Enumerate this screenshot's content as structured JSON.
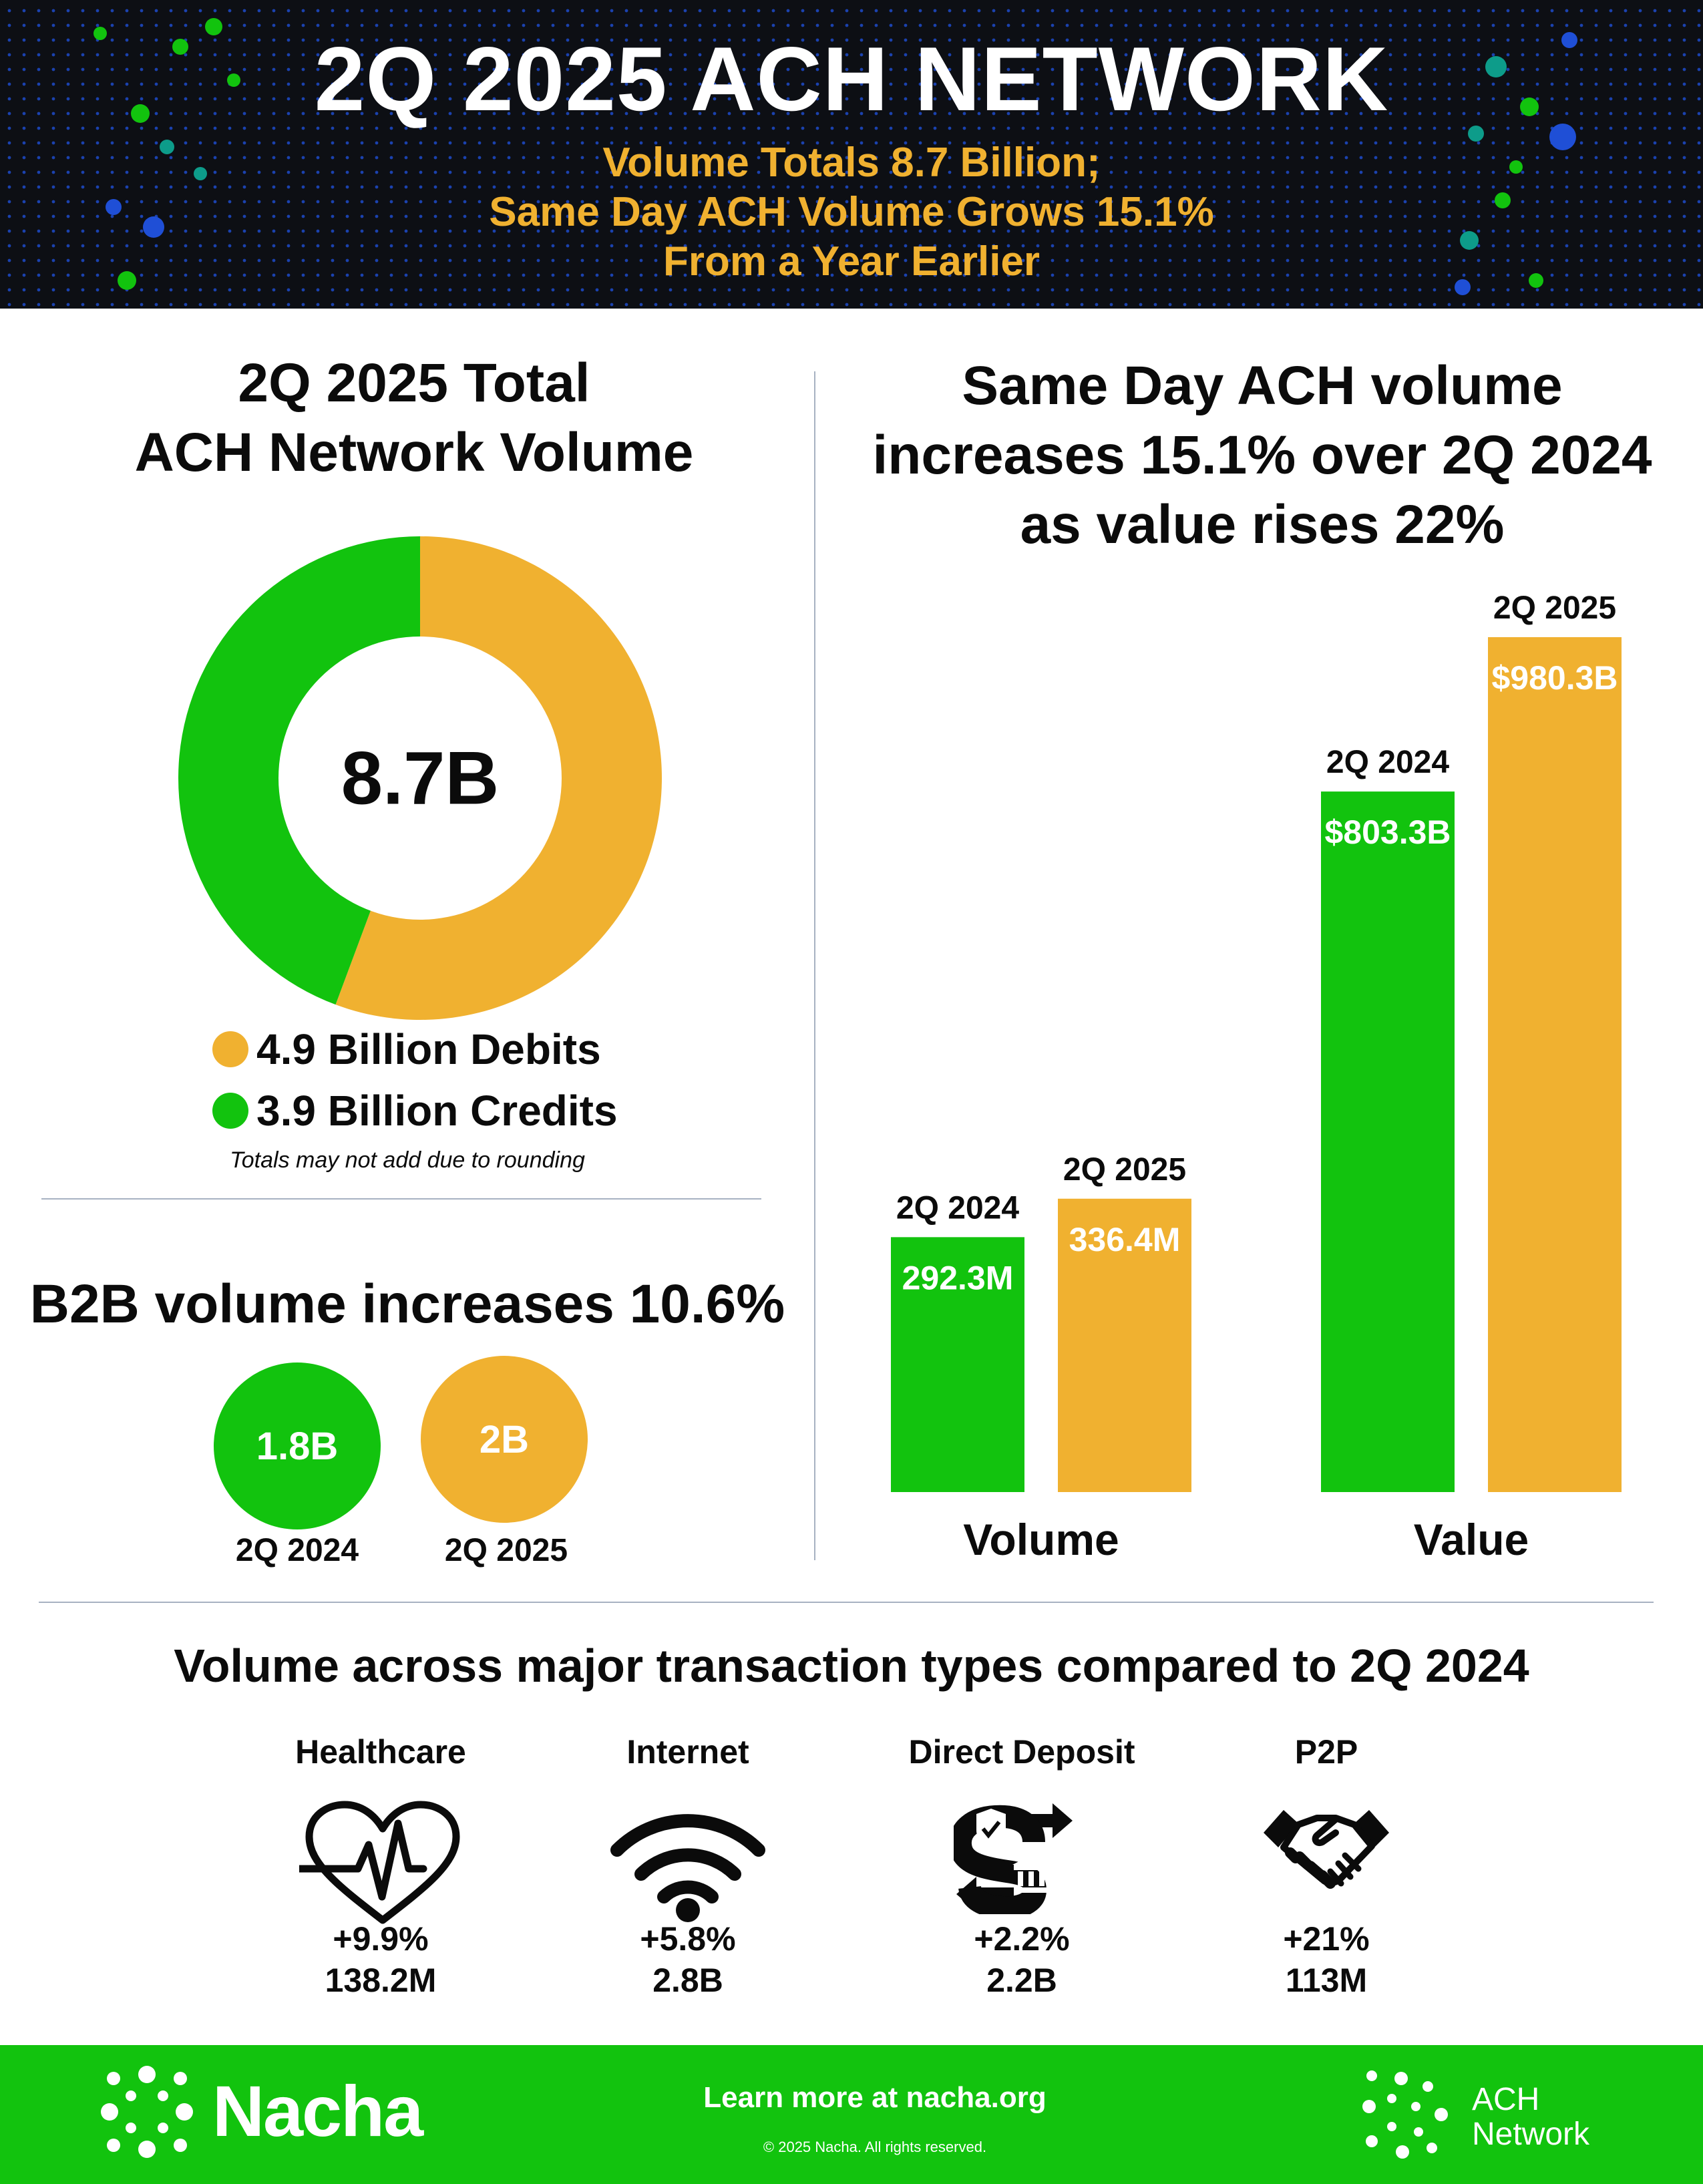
{
  "header": {
    "title": "2Q 2025 ACH NETWORK",
    "subtitle_lines": [
      "Volume Totals 8.7 Billion;",
      "Same Day ACH Volume Grows 15.1%",
      "From a Year Earlier"
    ]
  },
  "colors": {
    "green": "#12c30e",
    "gold": "#f0b130",
    "dark_bg": "#0d0f14",
    "dot_blue": "#1f4fd6",
    "dot_teal": "#0d9c8a"
  },
  "total_volume": {
    "title_lines": [
      "2Q 2025 Total",
      "ACH Network Volume"
    ],
    "center_label": "8.7B",
    "legend": [
      {
        "label": "4.9 Billion Debits",
        "color": "#f0b130"
      },
      {
        "label": "3.9 Billion Credits",
        "color": "#12c30e"
      }
    ],
    "note": "Totals may not add due to rounding"
  },
  "b2b": {
    "title": "B2B volume increases 10.6%",
    "items": [
      {
        "value_label": "1.8B",
        "period": "2Q 2024",
        "color": "#12c30e"
      },
      {
        "value_label": "2B",
        "period": "2Q 2025",
        "color": "#f0b130"
      }
    ]
  },
  "same_day": {
    "title_lines": [
      "Same Day ACH volume",
      "increases 15.1% over 2Q 2024",
      "as value rises 22%"
    ]
  },
  "chart_data": [
    {
      "type": "pie",
      "title": "2Q 2025 Total ACH Network Volume",
      "categories": [
        "Debits",
        "Credits"
      ],
      "values": [
        4.9,
        3.9
      ],
      "units": "Billion",
      "center_label": "8.7B",
      "colors": [
        "#f0b130",
        "#12c30e"
      ]
    },
    {
      "type": "bar",
      "title": "",
      "categories": [
        "Volume",
        "Value"
      ],
      "series": [
        {
          "name": "2Q 2024",
          "values": [
            292.3,
            803.3
          ],
          "labels": [
            "292.3M",
            "$803.3B"
          ],
          "color": "#12c30e"
        },
        {
          "name": "2Q 2025",
          "values": [
            336.4,
            980.3
          ],
          "labels": [
            "336.4M",
            "$980.3B"
          ],
          "color": "#f0b130"
        }
      ],
      "grid": false
    }
  ],
  "transactions": {
    "title": "Volume across major transaction types compared to 2Q 2024",
    "items": [
      {
        "name": "Healthcare",
        "icon": "heart-pulse-icon",
        "change": "+9.9%",
        "volume": "138.2M"
      },
      {
        "name": "Internet",
        "icon": "wifi-icon",
        "change": "+5.8%",
        "volume": "2.8B"
      },
      {
        "name": "Direct Deposit",
        "icon": "direct-deposit-icon",
        "change": "+2.2%",
        "volume": "2.2B"
      },
      {
        "name": "P2P",
        "icon": "handshake-icon",
        "change": "+21%",
        "volume": "113M"
      }
    ]
  },
  "footer": {
    "brand": "Nacha",
    "cta": "Learn more at nacha.org",
    "copyright": "© 2025 Nacha. All rights reserved.",
    "network_lines": [
      "ACH",
      "Network"
    ]
  }
}
